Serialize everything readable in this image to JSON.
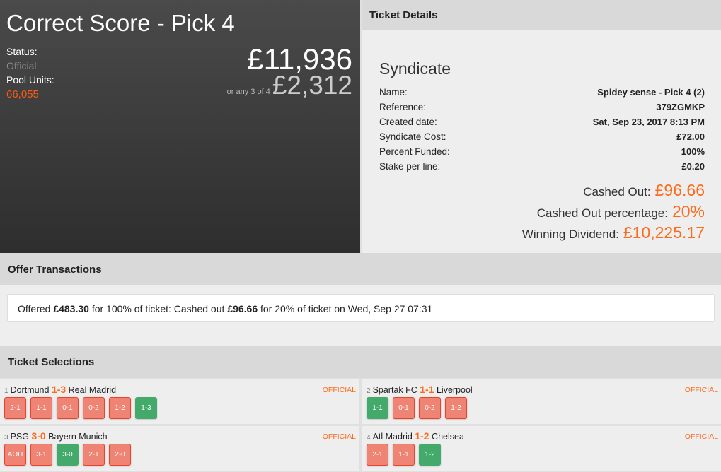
{
  "hero": {
    "title": "Correct Score - Pick 4",
    "status_label": "Status:",
    "status": "Official",
    "pool_label": "Pool Units:",
    "pool_units": "66,055",
    "main_dividend": "£11,936",
    "alt_label": "or any 3 of 4",
    "alt_dividend": "£2,312"
  },
  "ticket": {
    "header": "Ticket Details",
    "heading": "Syndicate",
    "rows": [
      {
        "label": "Name:",
        "value": "Spidey sense - Pick 4 (2)"
      },
      {
        "label": "Reference:",
        "value": "379ZGMKP"
      },
      {
        "label": "Created date:",
        "value": "Sat, Sep 23, 2017 8:13 PM"
      },
      {
        "label": "Syndicate Cost:",
        "value": "£72.00"
      },
      {
        "label": "Percent Funded:",
        "value": "100%"
      },
      {
        "label": "Stake per line:",
        "value": "£0.20"
      }
    ],
    "cashed_out_label": "Cashed Out:",
    "cashed_out": "£96.66",
    "pct_label": "Cashed Out percentage:",
    "pct": "20%",
    "div_label": "Winning Dividend:",
    "dividend": "£10,225.17"
  },
  "offers": {
    "header": "Offer Transactions",
    "t1": "Offered ",
    "a1": "£483.30",
    "t2": " for 100% of ticket: Cashed out ",
    "a2": "£96.66",
    "t3": " for 20% of ticket on Wed, Sep 27 07:31"
  },
  "selections": {
    "header": "Ticket Selections",
    "legs": [
      {
        "num": "1",
        "home": "Dortmund",
        "score": "1-3",
        "away": "Real Madrid",
        "status": "OFFICIAL",
        "picks": [
          "2-1",
          "1-1",
          "0-1",
          "0-2",
          "1-2",
          "1-3"
        ],
        "winner": "1-3"
      },
      {
        "num": "2",
        "home": "Spartak FC",
        "score": "1-1",
        "away": "Liverpool",
        "status": "OFFICIAL",
        "picks": [
          "1-1",
          "0-1",
          "0-2",
          "1-2"
        ],
        "winner": "1-1"
      },
      {
        "num": "3",
        "home": "PSG",
        "score": "3-0",
        "away": "Bayern Munich",
        "status": "OFFICIAL",
        "picks": [
          "AOH",
          "3-1",
          "3-0",
          "2-1",
          "2-0"
        ],
        "winner": "3-0"
      },
      {
        "num": "4",
        "home": "Atl Madrid",
        "score": "1-2",
        "away": "Chelsea",
        "status": "OFFICIAL",
        "picks": [
          "2-1",
          "1-1",
          "1-2"
        ],
        "winner": "1-2"
      }
    ]
  },
  "colors": {
    "accent": "#ff6a1a",
    "win": "#43aa6b",
    "lose": "#f08474"
  }
}
